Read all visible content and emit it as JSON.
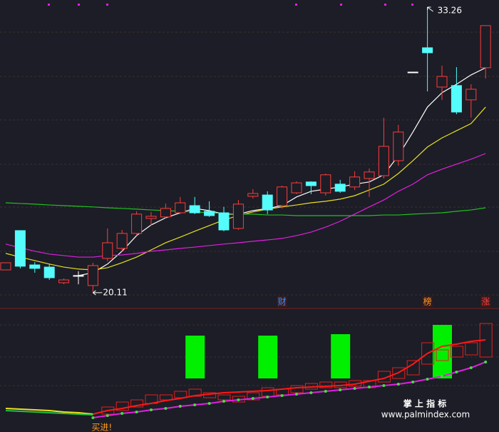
{
  "chart_data": [
    {
      "type": "candlestick",
      "open": [
        21.16,
        22.97,
        21.39,
        21.29,
        20.57,
        20.9,
        20.44,
        21.69,
        22.15,
        22.84,
        23.53,
        23.6,
        23.79,
        24.12,
        23.86,
        23.79,
        23.07,
        24.55,
        24.61,
        24.12,
        24.71,
        25.21,
        24.71,
        25.11,
        24.98,
        25.37,
        25.5,
        26.19,
        30.27,
        31.39,
        29.58,
        29.65,
        28.99,
        30.47
      ],
      "close": [
        21.49,
        21.33,
        21.23,
        20.8,
        20.7,
        20.9,
        21.36,
        22.41,
        22.84,
        23.73,
        23.63,
        23.99,
        24.25,
        23.79,
        23.66,
        23.0,
        24.19,
        24.68,
        23.92,
        24.98,
        25.17,
        25.04,
        25.54,
        24.78,
        25.44,
        25.67,
        26.85,
        27.51,
        30.27,
        31.16,
        30.07,
        28.43,
        29.48,
        32.41
      ],
      "high": [
        21.49,
        22.97,
        21.52,
        21.43,
        20.77,
        21.1,
        21.49,
        23.07,
        23.0,
        23.86,
        23.83,
        24.22,
        24.52,
        24.52,
        24.32,
        24.06,
        24.38,
        24.88,
        24.78,
        25.04,
        25.24,
        25.24,
        25.6,
        25.31,
        25.7,
        25.83,
        28.17,
        27.84,
        30.27,
        33.26,
        30.57,
        30.5,
        29.71,
        32.41
      ],
      "low": [
        21.16,
        21.23,
        21.03,
        20.7,
        20.5,
        20.5,
        20.11,
        21.56,
        22.02,
        22.74,
        23.2,
        23.53,
        23.73,
        23.73,
        23.6,
        22.94,
        23.0,
        24.45,
        23.73,
        23.99,
        24.65,
        24.65,
        24.58,
        24.71,
        24.84,
        24.52,
        25.37,
        25.96,
        30.27,
        29.38,
        28.99,
        28.33,
        28.17,
        29.97
      ],
      "up_color": "#ff3c3c",
      "down_color": "#54fcfc",
      "flat_color": "#ffffff",
      "ylim": [
        19.45,
        33.59
      ],
      "series": [
        {
          "color": "#ffffff",
          "values": [
            null,
            null,
            null,
            null,
            null,
            20.9,
            21.03,
            21.43,
            22.02,
            22.74,
            23.23,
            23.56,
            23.79,
            23.99,
            23.89,
            23.73,
            23.73,
            23.89,
            23.99,
            24.12,
            24.52,
            24.78,
            24.88,
            24.98,
            25.11,
            25.21,
            25.54,
            26.42,
            27.51,
            28.66,
            29.32,
            29.71,
            30.14,
            30.47
          ]
        },
        {
          "color": "#e8e020",
          "values": [
            21.92,
            21.75,
            21.59,
            21.43,
            21.29,
            21.2,
            21.16,
            21.26,
            21.49,
            21.75,
            22.08,
            22.41,
            22.67,
            22.94,
            23.2,
            23.46,
            23.66,
            23.83,
            23.96,
            24.06,
            24.15,
            24.25,
            24.32,
            24.42,
            24.58,
            24.84,
            25.11,
            25.6,
            26.19,
            26.82,
            27.24,
            27.57,
            27.9,
            28.66
          ]
        },
        {
          "color": "#e020e0",
          "values": [
            22.35,
            22.18,
            22.02,
            21.89,
            21.82,
            21.75,
            21.75,
            21.82,
            21.85,
            21.92,
            22.02,
            22.08,
            22.15,
            22.21,
            22.28,
            22.35,
            22.41,
            22.48,
            22.54,
            22.61,
            22.74,
            22.9,
            23.13,
            23.4,
            23.73,
            24.06,
            24.38,
            24.78,
            25.11,
            25.54,
            25.8,
            26.03,
            26.26,
            26.52
          ]
        },
        {
          "color": "#20c020",
          "values": [
            24.25,
            24.22,
            24.19,
            24.15,
            24.12,
            24.09,
            24.06,
            24.02,
            23.99,
            23.96,
            23.92,
            23.89,
            23.86,
            23.83,
            23.79,
            23.76,
            23.73,
            23.73,
            23.69,
            23.69,
            23.66,
            23.66,
            23.66,
            23.66,
            23.66,
            23.66,
            23.69,
            23.69,
            23.73,
            23.76,
            23.79,
            23.86,
            23.92,
            24.02
          ]
        }
      ],
      "markers": {
        "labels": [
          "财",
          "榜",
          "涨"
        ],
        "index": [
          19,
          29,
          33
        ],
        "colors": [
          "#3c8cff",
          "#ff9a20",
          "#ff4040"
        ]
      }
    },
    {
      "type": "indicator",
      "ylim": [
        0,
        172
      ],
      "bars": {
        "color": "#e02020",
        "low": [
          null,
          null,
          null,
          null,
          null,
          null,
          null,
          25,
          30,
          35,
          40,
          45,
          48,
          50,
          48,
          45,
          42,
          45,
          50,
          52,
          55,
          60,
          62,
          62,
          64,
          62,
          70,
          75,
          80,
          95,
          100,
          105,
          108,
          105
        ],
        "high": [
          null,
          null,
          null,
          null,
          null,
          null,
          null,
          35,
          42,
          45,
          52,
          52,
          57,
          60,
          55,
          52,
          50,
          55,
          62,
          60,
          65,
          68,
          70,
          70,
          72,
          72,
          85,
          90,
          100,
          125,
          115,
          120,
          125,
          152
        ]
      },
      "blocks": {
        "color": "#00f000",
        "index": [
          13,
          18,
          23,
          30
        ],
        "top": [
          135,
          135,
          137,
          150
        ],
        "bottom": [
          75,
          75,
          75,
          75
        ]
      },
      "series": [
        {
          "color": "#f0e020",
          "values": [
            33,
            32,
            31,
            30,
            28,
            27,
            25,
            null,
            null,
            null,
            null,
            null,
            null,
            null,
            null,
            null,
            null,
            null,
            null,
            null,
            null,
            null,
            null,
            null,
            null,
            null,
            null,
            null,
            null,
            null,
            null,
            null,
            null,
            null
          ]
        },
        {
          "color": "#20c040",
          "values": [
            30,
            29,
            28,
            27,
            26,
            25,
            24,
            null,
            null,
            null,
            null,
            null,
            null,
            null,
            null,
            null,
            null,
            null,
            null,
            null,
            null,
            null,
            null,
            null,
            null,
            null,
            null,
            null,
            null,
            null,
            null,
            null,
            null,
            null
          ]
        },
        {
          "color": "#ff1818",
          "values": [
            null,
            null,
            null,
            null,
            null,
            null,
            25,
            30,
            33,
            37,
            40,
            44,
            47,
            51,
            53,
            55,
            56,
            57,
            58,
            60,
            62,
            63,
            64,
            65,
            67,
            71,
            75,
            83,
            95,
            110,
            120,
            123,
            127,
            129
          ]
        },
        {
          "color": "#e020e0",
          "dots": "#40e040",
          "values": [
            null,
            null,
            null,
            null,
            null,
            null,
            20,
            23,
            26,
            28,
            31,
            33,
            36,
            38,
            40,
            43,
            45,
            47,
            49,
            51,
            53,
            55,
            57,
            59,
            61,
            63,
            65,
            67,
            70,
            74,
            78,
            84,
            90,
            98
          ]
        }
      ],
      "signal": {
        "text": "买进!",
        "index": 6
      }
    }
  ],
  "watermark": {
    "title": "掌 上 指 标",
    "url": "www.palmindex.com"
  }
}
